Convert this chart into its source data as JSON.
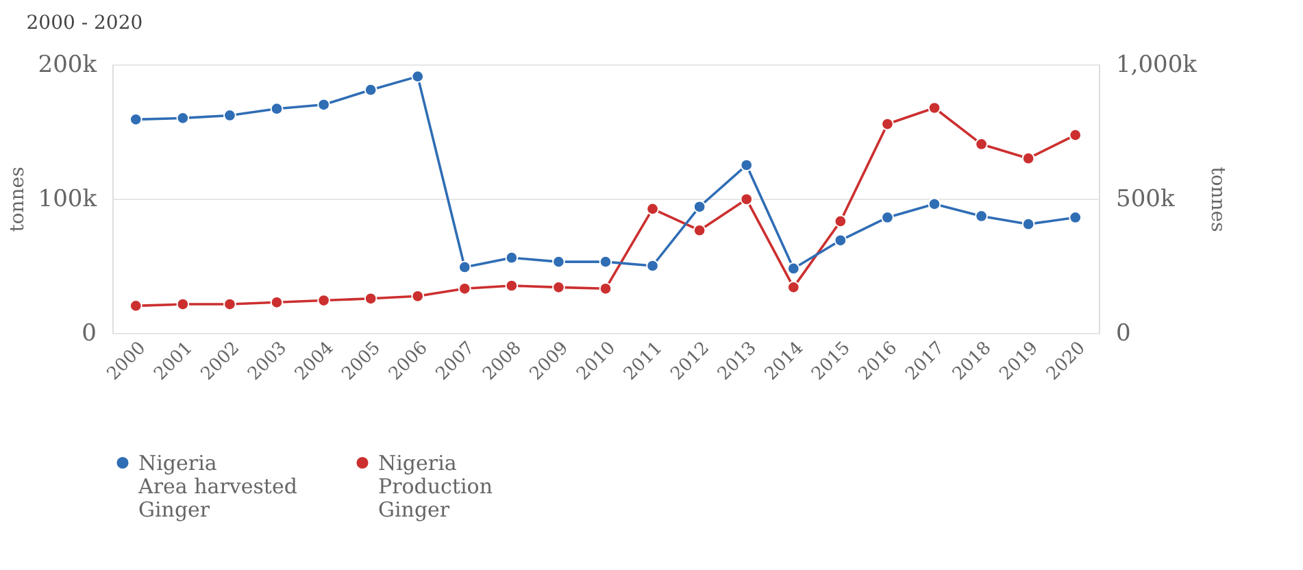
{
  "chart_data": {
    "type": "line",
    "title": "2000 - 2020",
    "categories": [
      "2000",
      "2001",
      "2002",
      "2003",
      "2004",
      "2005",
      "2006",
      "2007",
      "2008",
      "2009",
      "2010",
      "2011",
      "2012",
      "2013",
      "2014",
      "2015",
      "2016",
      "2017",
      "2018",
      "2019",
      "2020"
    ],
    "series": [
      {
        "name": "Nigeria\nArea harvested\nGinger",
        "color": "#2f6db5",
        "values": [
          159000,
          160000,
          162000,
          167000,
          170000,
          181000,
          191000,
          49000,
          56000,
          53000,
          53000,
          50000,
          94000,
          125000,
          48000,
          69000,
          86000,
          96000,
          87000,
          81000,
          86000
        ]
      },
      {
        "name": "Nigeria\nProduction\nGinger",
        "color": "#cc2f2f",
        "axis": "y2",
        "values": [
          101000,
          107000,
          107000,
          114000,
          121000,
          128000,
          137000,
          165000,
          176000,
          170000,
          165000,
          462000,
          382000,
          498000,
          170000,
          416000,
          778000,
          838000,
          703000,
          650000,
          737000
        ]
      }
    ],
    "ylabel": "tonnes",
    "y2label": "tonnes",
    "ylim": [
      0,
      200000
    ],
    "yticks": [
      0,
      {
        "value": 100000,
        "label": "100k"
      },
      {
        "value": 200000,
        "label": "200k"
      }
    ],
    "y2lim": [
      0,
      1000000
    ],
    "y2ticks": [
      0,
      {
        "value": 500000,
        "label": "500k"
      },
      {
        "value": 1000000,
        "label": "1,000k"
      }
    ],
    "grid": "y",
    "legend": "bottom",
    "marker": "circle",
    "line_style": "solid"
  }
}
